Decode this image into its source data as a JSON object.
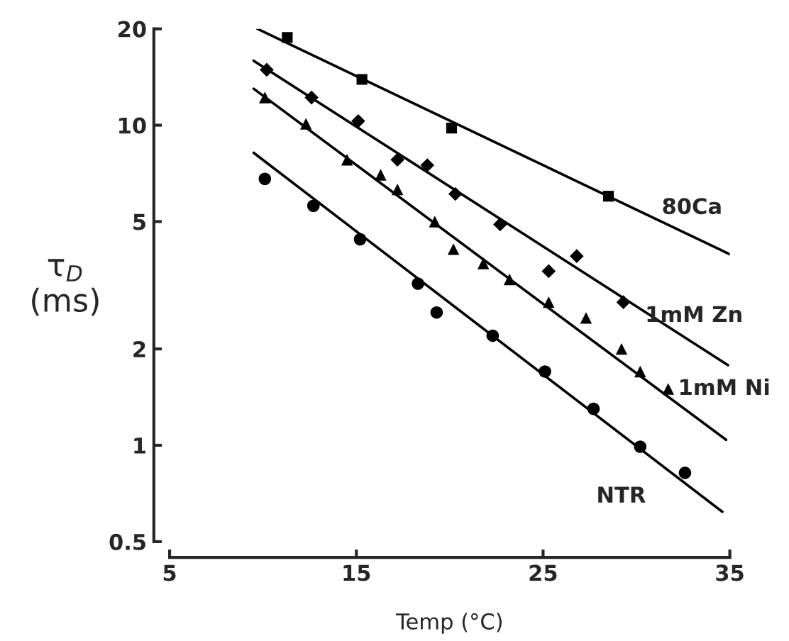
{
  "chart_data": {
    "type": "scatter",
    "xlabel": "Temp (°C)",
    "ylabel": "τ$_{D}$\n(ms)",
    "xlim": [
      5,
      35
    ],
    "xticks": [
      5,
      15,
      25,
      35
    ],
    "ylim": [
      0.5,
      20
    ],
    "yticks": [
      0.5,
      1,
      2,
      5,
      10,
      20
    ],
    "log": "y",
    "grid": false,
    "legend": false,
    "series": [
      {
        "name": "80Ca",
        "marker": "square",
        "color": "#000000",
        "x": [
          11.3,
          15.3,
          20.1,
          28.5
        ],
        "values": [
          18.8,
          13.9,
          9.8,
          6.0
        ]
      },
      {
        "type": "line",
        "line_style": "solid",
        "marker": "none",
        "color": "#000000",
        "x": [
          9.7,
          35
        ],
        "values": [
          20.0,
          3.95
        ]
      },
      {
        "name": "1mM Zn",
        "marker": "diamond",
        "color": "#000000",
        "x": [
          10.2,
          12.6,
          15.1,
          17.2,
          18.8,
          20.3,
          22.7,
          25.3,
          26.8,
          29.3
        ],
        "values": [
          14.9,
          12.2,
          10.3,
          7.8,
          7.5,
          6.1,
          4.9,
          3.5,
          3.9,
          2.8
        ]
      },
      {
        "type": "line",
        "line_style": "solid",
        "marker": "none",
        "color": "#000000",
        "x": [
          9.5,
          34.9
        ],
        "values": [
          15.9,
          1.78
        ]
      },
      {
        "name": "1mM Ni",
        "marker": "triangle",
        "color": "#000000",
        "x": [
          10.1,
          12.3,
          14.5,
          16.3,
          17.2,
          19.2,
          20.2,
          21.8,
          23.2,
          25.3,
          27.3,
          29.2,
          30.2,
          31.7
        ],
        "values": [
          12.2,
          10.1,
          7.8,
          7.0,
          6.3,
          5.0,
          4.1,
          3.7,
          3.3,
          2.8,
          2.5,
          2.0,
          1.7,
          1.5
        ]
      },
      {
        "type": "line",
        "line_style": "solid",
        "marker": "none",
        "color": "#000000",
        "x": [
          9.5,
          34.8
        ],
        "values": [
          13.0,
          1.04
        ]
      },
      {
        "name": "NTR",
        "marker": "circle",
        "color": "#000000",
        "x": [
          10.1,
          12.7,
          15.2,
          18.3,
          19.3,
          22.3,
          25.1,
          27.7,
          30.2,
          32.6
        ],
        "values": [
          6.8,
          5.6,
          4.4,
          3.2,
          2.6,
          2.2,
          1.7,
          1.3,
          0.99,
          0.82
        ]
      },
      {
        "type": "line",
        "line_style": "solid",
        "marker": "none",
        "color": "#000000",
        "x": [
          9.5,
          34.6
        ],
        "values": [
          8.2,
          0.62
        ]
      }
    ]
  }
}
